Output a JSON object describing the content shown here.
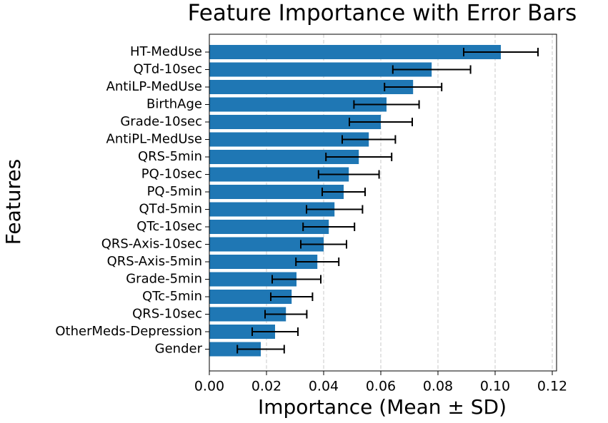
{
  "chart_data": {
    "type": "barh",
    "title": "Feature Importance with Error Bars",
    "xlabel": "Importance (Mean ± SD)",
    "ylabel": "Features",
    "categories": [
      "HT-MedUse",
      "QTd-10sec",
      "AntiLP-MedUse",
      "BirthAge",
      "Grade-10sec",
      "AntiPL-MedUse",
      "QRS-5min",
      "PQ-10sec",
      "PQ-5min",
      "QTd-5min",
      "QTc-10sec",
      "QRS-Axis-10sec",
      "QRS-Axis-5min",
      "Grade-5min",
      "QTc-5min",
      "QRS-10sec",
      "OtherMeds-Depression",
      "Gender"
    ],
    "values": [
      0.102,
      0.0778,
      0.0713,
      0.062,
      0.06,
      0.0558,
      0.0523,
      0.0488,
      0.047,
      0.0438,
      0.0418,
      0.04,
      0.0378,
      0.0305,
      0.0288,
      0.0268,
      0.023,
      0.018
    ],
    "errors": [
      0.013,
      0.0136,
      0.01,
      0.0114,
      0.011,
      0.0093,
      0.0115,
      0.0106,
      0.0075,
      0.0098,
      0.009,
      0.008,
      0.0075,
      0.0085,
      0.0073,
      0.0073,
      0.008,
      0.0082
    ],
    "color": "#1f77b4",
    "xlim": [
      0,
      0.1215
    ],
    "xticks": [
      {
        "value": 0,
        "label": "0.00"
      },
      {
        "value": 0.02,
        "label": "0.02"
      },
      {
        "value": 0.04,
        "label": "0.04"
      },
      {
        "value": 0.06,
        "label": "0.06"
      },
      {
        "value": 0.08,
        "label": "0.08"
      },
      {
        "value": 0.1,
        "label": "0.10"
      },
      {
        "value": 0.12,
        "label": "0.12"
      }
    ],
    "grid": true
  }
}
